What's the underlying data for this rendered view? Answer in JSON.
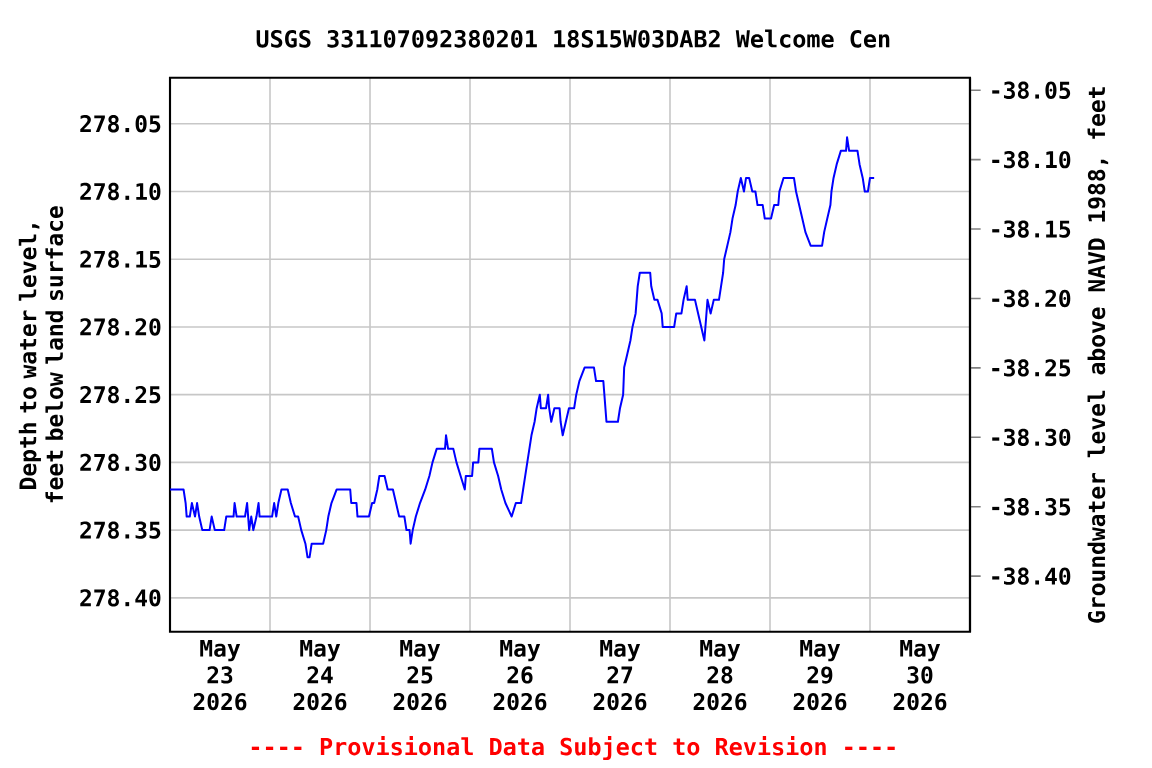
{
  "chart_data": {
    "type": "line",
    "title": "USGS 331107092380201 18S15W03DAB2 Welcome Cen",
    "ylabel": "Depth to water level, feet below land surface",
    "y2label": "Groundwater level above NAVD 1988, feet",
    "annotations": [
      "---- Provisional Data Subject to Revision ----"
    ],
    "xlim": [
      "2026-05-23",
      "2026-05-31"
    ],
    "xticks": [
      {
        "value": "2026-05-23T12:00",
        "label": "May 23 2026"
      },
      {
        "value": "2026-05-24T12:00",
        "label": "May 24 2026"
      },
      {
        "value": "2026-05-25T12:00",
        "label": "May 25 2026"
      },
      {
        "value": "2026-05-26T12:00",
        "label": "May 26 2026"
      },
      {
        "value": "2026-05-27T12:00",
        "label": "May 27 2026"
      },
      {
        "value": "2026-05-28T12:00",
        "label": "May 28 2026"
      },
      {
        "value": "2026-05-29T12:00",
        "label": "May 29 2026"
      },
      {
        "value": "2026-05-30T12:00",
        "label": "May 30 2026"
      },
      {
        "value": "2026-05-24",
        "label": null
      },
      {
        "value": "2026-05-25",
        "label": null
      },
      {
        "value": "2026-05-26",
        "label": null
      },
      {
        "value": "2026-05-27",
        "label": null
      },
      {
        "value": "2026-05-28",
        "label": null
      },
      {
        "value": "2026-05-29",
        "label": null
      },
      {
        "value": "2026-05-30",
        "label": null
      }
    ],
    "ylim": [
      278.425,
      278.016
    ],
    "yticks": [
      278.05,
      {
        "value": 278.1,
        "label": "278.10"
      },
      278.15,
      {
        "value": 278.2,
        "label": "278.20"
      },
      278.25,
      {
        "value": 278.3,
        "label": "278.30"
      },
      278.35,
      {
        "value": 278.4,
        "label": "278.40"
      }
    ],
    "y2lim": [
      -38.44,
      -38.041
    ],
    "y2ticks": [
      -38.05,
      {
        "value": -38.1,
        "label": "-38.10"
      },
      -38.15,
      {
        "value": -38.2,
        "label": "-38.20"
      },
      -38.25,
      {
        "value": -38.3,
        "label": "-38.30"
      },
      -38.35,
      {
        "value": -38.4,
        "label": "-38.40"
      }
    ],
    "grid": true,
    "series": [
      {
        "color": "#0000ff",
        "x": [
          "2026-05-23T00:00",
          "2026-05-23T03:15",
          "2026-05-23T03:45",
          "2026-05-23T04:00",
          "2026-05-23T04:45",
          "2026-05-23T05:15",
          "2026-05-23T06:00",
          "2026-05-23T06:30",
          "2026-05-23T07:00",
          "2026-05-23T07:45",
          "2026-05-23T09:30",
          "2026-05-23T10:00",
          "2026-05-23T10:45",
          "2026-05-23T13:00",
          "2026-05-23T13:30",
          "2026-05-23T15:15",
          "2026-05-23T15:30",
          "2026-05-23T16:00",
          "2026-05-23T18:00",
          "2026-05-23T18:30",
          "2026-05-23T19:00",
          "2026-05-23T19:30",
          "2026-05-23T20:00",
          "2026-05-23T20:45",
          "2026-05-23T21:15",
          "2026-05-23T21:30",
          "2026-05-24T00:30",
          "2026-05-24T01:00",
          "2026-05-24T01:30",
          "2026-05-24T02:00",
          "2026-05-24T02:45",
          "2026-05-24T04:15",
          "2026-05-24T05:00",
          "2026-05-24T06:00",
          "2026-05-24T06:45",
          "2026-05-24T07:30",
          "2026-05-24T08:30",
          "2026-05-24T09:00",
          "2026-05-24T09:30",
          "2026-05-24T10:00",
          "2026-05-24T12:45",
          "2026-05-24T13:30",
          "2026-05-24T14:00",
          "2026-05-24T14:45",
          "2026-05-24T16:00",
          "2026-05-24T19:15",
          "2026-05-24T19:30",
          "2026-05-24T20:45",
          "2026-05-24T21:00",
          "2026-05-24T23:45",
          "2026-05-25T00:30",
          "2026-05-25T01:00",
          "2026-05-25T01:45",
          "2026-05-25T02:15",
          "2026-05-25T03:30",
          "2026-05-25T04:15",
          "2026-05-25T05:30",
          "2026-05-25T06:15",
          "2026-05-25T07:00",
          "2026-05-25T08:15",
          "2026-05-25T08:45",
          "2026-05-25T09:30",
          "2026-05-25T09:45",
          "2026-05-25T10:15",
          "2026-05-25T11:00",
          "2026-05-25T12:00",
          "2026-05-25T13:15",
          "2026-05-25T14:15",
          "2026-05-25T15:00",
          "2026-05-25T16:00",
          "2026-05-25T18:00",
          "2026-05-25T18:15",
          "2026-05-25T18:45",
          "2026-05-25T20:00",
          "2026-05-25T20:45",
          "2026-05-25T21:45",
          "2026-05-25T22:45",
          "2026-05-25T23:00",
          "2026-05-26T00:30",
          "2026-05-26T00:45",
          "2026-05-26T02:00",
          "2026-05-26T02:15",
          "2026-05-26T05:15",
          "2026-05-26T05:45",
          "2026-05-26T06:45",
          "2026-05-26T07:30",
          "2026-05-26T08:30",
          "2026-05-26T10:00",
          "2026-05-26T11:00",
          "2026-05-26T12:15",
          "2026-05-26T12:45",
          "2026-05-26T13:15",
          "2026-05-26T13:45",
          "2026-05-26T14:15",
          "2026-05-26T14:45",
          "2026-05-26T15:30",
          "2026-05-26T16:00",
          "2026-05-26T16:45",
          "2026-05-26T17:00",
          "2026-05-26T18:15",
          "2026-05-26T18:45",
          "2026-05-26T19:00",
          "2026-05-26T19:30",
          "2026-05-26T20:15",
          "2026-05-26T21:30",
          "2026-05-26T21:45",
          "2026-05-26T22:15",
          "2026-05-26T23:00",
          "2026-05-26T23:45",
          "2026-05-27T01:00",
          "2026-05-27T01:30",
          "2026-05-27T02:15",
          "2026-05-27T03:30",
          "2026-05-27T05:45",
          "2026-05-27T06:15",
          "2026-05-27T08:00",
          "2026-05-27T08:15",
          "2026-05-27T08:45",
          "2026-05-27T11:30",
          "2026-05-27T12:00",
          "2026-05-27T12:45",
          "2026-05-27T13:00",
          "2026-05-27T13:45",
          "2026-05-27T14:30",
          "2026-05-27T15:00",
          "2026-05-27T15:45",
          "2026-05-27T16:15",
          "2026-05-27T16:45",
          "2026-05-27T19:15",
          "2026-05-27T19:30",
          "2026-05-27T20:15",
          "2026-05-27T21:00",
          "2026-05-27T22:00",
          "2026-05-27T22:15",
          "2026-05-28T01:00",
          "2026-05-28T01:30",
          "2026-05-28T02:45",
          "2026-05-28T03:15",
          "2026-05-28T04:00",
          "2026-05-28T04:15",
          "2026-05-28T06:00",
          "2026-05-28T06:45",
          "2026-05-28T07:30",
          "2026-05-28T08:15",
          "2026-05-28T09:00",
          "2026-05-28T09:45",
          "2026-05-28T10:30",
          "2026-05-28T11:45",
          "2026-05-28T12:15",
          "2026-05-28T12:45",
          "2026-05-28T13:00",
          "2026-05-28T13:45",
          "2026-05-28T14:30",
          "2026-05-28T15:00",
          "2026-05-28T15:45",
          "2026-05-28T16:15",
          "2026-05-28T17:00",
          "2026-05-28T17:45",
          "2026-05-28T18:15",
          "2026-05-28T19:00",
          "2026-05-28T19:45",
          "2026-05-28T20:30",
          "2026-05-28T21:00",
          "2026-05-28T22:15",
          "2026-05-28T22:45",
          "2026-05-29T00:15",
          "2026-05-29T01:00",
          "2026-05-29T02:00",
          "2026-05-29T02:15",
          "2026-05-29T03:15",
          "2026-05-29T05:45",
          "2026-05-29T06:15",
          "2026-05-29T07:00",
          "2026-05-29T07:45",
          "2026-05-29T08:30",
          "2026-05-29T09:45",
          "2026-05-29T12:30",
          "2026-05-29T13:00",
          "2026-05-29T13:45",
          "2026-05-29T14:30",
          "2026-05-29T14:45",
          "2026-05-29T15:15",
          "2026-05-29T16:00",
          "2026-05-29T17:00",
          "2026-05-29T18:15",
          "2026-05-29T18:30",
          "2026-05-29T19:00",
          "2026-05-29T21:00",
          "2026-05-29T21:30",
          "2026-05-29T22:15",
          "2026-05-29T22:45",
          "2026-05-29T23:30",
          "2026-05-30T00:00",
          "2026-05-30T01:00"
        ],
        "values": [
          278.32,
          278.32,
          278.33,
          278.34,
          278.34,
          278.33,
          278.34,
          278.33,
          278.34,
          278.35,
          278.35,
          278.34,
          278.35,
          278.35,
          278.34,
          278.34,
          278.33,
          278.34,
          278.34,
          278.33,
          278.35,
          278.34,
          278.35,
          278.34,
          278.33,
          278.34,
          278.34,
          278.33,
          278.34,
          278.33,
          278.32,
          278.32,
          278.33,
          278.34,
          278.34,
          278.35,
          278.36,
          278.37,
          278.37,
          278.36,
          278.36,
          278.35,
          278.34,
          278.33,
          278.32,
          278.32,
          278.33,
          278.33,
          278.34,
          278.34,
          278.33,
          278.33,
          278.32,
          278.31,
          278.31,
          278.32,
          278.32,
          278.33,
          278.34,
          278.34,
          278.35,
          278.35,
          278.36,
          278.35,
          278.34,
          278.33,
          278.32,
          278.31,
          278.3,
          278.29,
          278.29,
          278.28,
          278.29,
          278.29,
          278.3,
          278.31,
          278.32,
          278.31,
          278.31,
          278.3,
          278.3,
          278.29,
          278.29,
          278.3,
          278.31,
          278.32,
          278.33,
          278.34,
          278.33,
          278.33,
          278.32,
          278.31,
          278.3,
          278.29,
          278.28,
          278.27,
          278.26,
          278.25,
          278.26,
          278.26,
          278.25,
          278.26,
          278.27,
          278.26,
          278.26,
          278.27,
          278.28,
          278.27,
          278.26,
          278.26,
          278.25,
          278.24,
          278.23,
          278.23,
          278.24,
          278.24,
          278.25,
          278.27,
          278.27,
          278.26,
          278.25,
          278.23,
          278.22,
          278.21,
          278.2,
          278.19,
          278.17,
          278.16,
          278.16,
          278.17,
          278.18,
          278.18,
          278.19,
          278.2,
          278.2,
          278.19,
          278.19,
          278.18,
          278.17,
          278.18,
          278.18,
          278.19,
          278.2,
          278.21,
          278.18,
          278.19,
          278.18,
          278.18,
          278.17,
          278.16,
          278.15,
          278.14,
          278.13,
          278.12,
          278.11,
          278.1,
          278.09,
          278.1,
          278.09,
          278.09,
          278.1,
          278.1,
          278.11,
          278.11,
          278.12,
          278.12,
          278.11,
          278.11,
          278.1,
          278.09,
          278.09,
          278.1,
          278.11,
          278.12,
          278.13,
          278.14,
          278.14,
          278.13,
          278.12,
          278.11,
          278.1,
          278.09,
          278.08,
          278.07,
          278.07,
          278.06,
          278.07,
          278.07,
          278.08,
          278.09,
          278.1,
          278.1,
          278.09,
          278.09
        ]
      }
    ]
  }
}
